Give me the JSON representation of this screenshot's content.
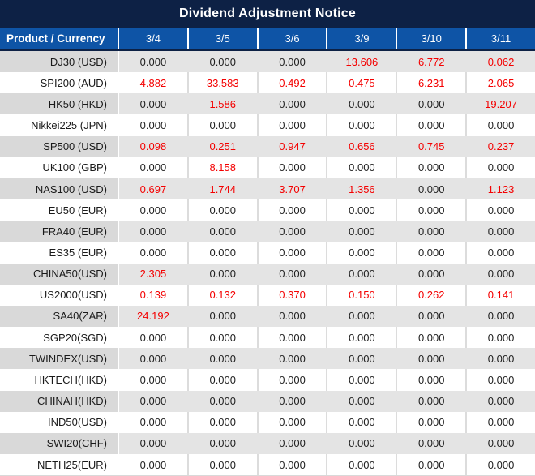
{
  "title": "Dividend Adjustment Notice",
  "colors": {
    "title_bg": "#0D2145",
    "header_bg": "#0E54A6",
    "header_text": "#FFFFFF",
    "stripe_label_bg": "#D9D9D9",
    "stripe_value_bg": "#E4E4E4",
    "zero_text": "#1F1F1F",
    "nonzero_text": "#F40000"
  },
  "chart_data": {
    "type": "table",
    "title": "Dividend Adjustment Notice",
    "columns": [
      "Product / Currency",
      "3/4",
      "3/5",
      "3/6",
      "3/9",
      "3/10",
      "3/11"
    ],
    "value_style_rule": "values not equal to 0.000 are shown in red",
    "rows": [
      {
        "label": "DJ30 (USD)",
        "values": [
          "0.000",
          "0.000",
          "0.000",
          "13.606",
          "6.772",
          "0.062"
        ]
      },
      {
        "label": "SPI200 (AUD)",
        "values": [
          "4.882",
          "33.583",
          "0.492",
          "0.475",
          "6.231",
          "2.065"
        ]
      },
      {
        "label": "HK50 (HKD)",
        "values": [
          "0.000",
          "1.586",
          "0.000",
          "0.000",
          "0.000",
          "19.207"
        ]
      },
      {
        "label": "Nikkei225 (JPN)",
        "values": [
          "0.000",
          "0.000",
          "0.000",
          "0.000",
          "0.000",
          "0.000"
        ]
      },
      {
        "label": "SP500 (USD)",
        "values": [
          "0.098",
          "0.251",
          "0.947",
          "0.656",
          "0.745",
          "0.237"
        ]
      },
      {
        "label": "UK100 (GBP)",
        "values": [
          "0.000",
          "8.158",
          "0.000",
          "0.000",
          "0.000",
          "0.000"
        ]
      },
      {
        "label": "NAS100 (USD)",
        "values": [
          "0.697",
          "1.744",
          "3.707",
          "1.356",
          "0.000",
          "1.123"
        ]
      },
      {
        "label": "EU50 (EUR)",
        "values": [
          "0.000",
          "0.000",
          "0.000",
          "0.000",
          "0.000",
          "0.000"
        ]
      },
      {
        "label": "FRA40 (EUR)",
        "values": [
          "0.000",
          "0.000",
          "0.000",
          "0.000",
          "0.000",
          "0.000"
        ]
      },
      {
        "label": "ES35 (EUR)",
        "values": [
          "0.000",
          "0.000",
          "0.000",
          "0.000",
          "0.000",
          "0.000"
        ]
      },
      {
        "label": "CHINA50(USD)",
        "values": [
          "2.305",
          "0.000",
          "0.000",
          "0.000",
          "0.000",
          "0.000"
        ]
      },
      {
        "label": "US2000(USD)",
        "values": [
          "0.139",
          "0.132",
          "0.370",
          "0.150",
          "0.262",
          "0.141"
        ]
      },
      {
        "label": "SA40(ZAR)",
        "values": [
          "24.192",
          "0.000",
          "0.000",
          "0.000",
          "0.000",
          "0.000"
        ]
      },
      {
        "label": "SGP20(SGD)",
        "values": [
          "0.000",
          "0.000",
          "0.000",
          "0.000",
          "0.000",
          "0.000"
        ]
      },
      {
        "label": "TWINDEX(USD)",
        "values": [
          "0.000",
          "0.000",
          "0.000",
          "0.000",
          "0.000",
          "0.000"
        ]
      },
      {
        "label": "HKTECH(HKD)",
        "values": [
          "0.000",
          "0.000",
          "0.000",
          "0.000",
          "0.000",
          "0.000"
        ]
      },
      {
        "label": "CHINAH(HKD)",
        "values": [
          "0.000",
          "0.000",
          "0.000",
          "0.000",
          "0.000",
          "0.000"
        ]
      },
      {
        "label": "IND50(USD)",
        "values": [
          "0.000",
          "0.000",
          "0.000",
          "0.000",
          "0.000",
          "0.000"
        ]
      },
      {
        "label": "SWI20(CHF)",
        "values": [
          "0.000",
          "0.000",
          "0.000",
          "0.000",
          "0.000",
          "0.000"
        ]
      },
      {
        "label": "NETH25(EUR)",
        "values": [
          "0.000",
          "0.000",
          "0.000",
          "0.000",
          "0.000",
          "0.000"
        ]
      }
    ]
  }
}
